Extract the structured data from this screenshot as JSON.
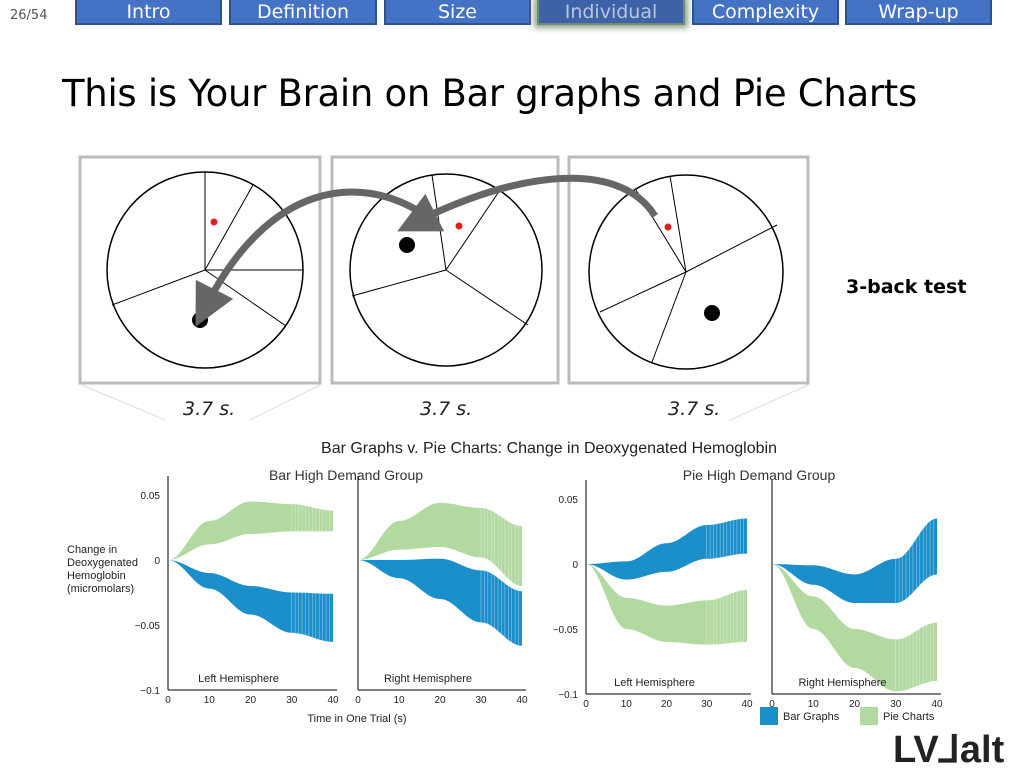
{
  "page_number": "26/54",
  "nav": {
    "tabs": [
      {
        "label": "Intro",
        "active": false
      },
      {
        "label": "Definition",
        "active": false
      },
      {
        "label": "Size",
        "active": false
      },
      {
        "label": "Individual",
        "active": true
      },
      {
        "label": "Complexity",
        "active": false
      },
      {
        "label": "Wrap-up",
        "active": false
      }
    ]
  },
  "title": "This is Your Brain on Bar graphs and Pie Charts",
  "nback": {
    "label": "3-back test",
    "durations": [
      "3.7 s.",
      "3.7 s.",
      "3.7 s."
    ]
  },
  "colors": {
    "nav_bg": "#4472c4",
    "bar_graphs": "#1a8fc9",
    "pie_charts": "#b2d9a0",
    "arrow": "#666666"
  },
  "chart_data": {
    "type": "area",
    "title": "Bar Graphs v. Pie Charts: Change in Deoxygenated Hemoglobin",
    "ylabel": "Change in Deoxygenated Hemoglobin (micromolars)",
    "xlabel": "Time in One Trial (s)",
    "x_ticks": [
      0,
      10,
      20,
      30,
      40
    ],
    "legend": {
      "placement": "bottom-right",
      "entries": [
        "Bar Graphs",
        "Pie Charts"
      ]
    },
    "groups": [
      {
        "title": "Bar High Demand Group",
        "y_ticks": [
          "0.05",
          "0",
          "−0.05",
          "−0.1"
        ],
        "ylim": [
          -0.1,
          0.06
        ],
        "panels": [
          {
            "label": "Left Hemisphere",
            "x": [
              0,
              10,
              20,
              30,
              40
            ],
            "series": [
              {
                "name": "Bar Graphs",
                "lower": [
                  0,
                  -0.022,
                  -0.042,
                  -0.056,
                  -0.063
                ],
                "upper": [
                  0,
                  -0.01,
                  -0.02,
                  -0.025,
                  -0.026
                ]
              },
              {
                "name": "Pie Charts",
                "lower": [
                  0,
                  0.012,
                  0.02,
                  0.022,
                  0.022
                ],
                "upper": [
                  0,
                  0.03,
                  0.045,
                  0.043,
                  0.038
                ]
              }
            ]
          },
          {
            "label": "Right Hemisphere",
            "x": [
              0,
              10,
              20,
              30,
              40
            ],
            "series": [
              {
                "name": "Bar Graphs",
                "lower": [
                  0,
                  -0.014,
                  -0.03,
                  -0.048,
                  -0.066
                ],
                "upper": [
                  0,
                  0.0,
                  0.001,
                  -0.008,
                  -0.024
                ]
              },
              {
                "name": "Pie Charts",
                "lower": [
                  0,
                  0.008,
                  0.01,
                  0.002,
                  -0.02
                ],
                "upper": [
                  0,
                  0.03,
                  0.044,
                  0.04,
                  0.026
                ]
              }
            ]
          }
        ]
      },
      {
        "title": "Pie High Demand Group",
        "y_ticks": [
          "0.05",
          "0",
          "−0.05",
          "−0.1"
        ],
        "ylim": [
          -0.1,
          0.06
        ],
        "panels": [
          {
            "label": "Left Hemisphere",
            "x": [
              0,
              10,
              20,
              30,
              40
            ],
            "series": [
              {
                "name": "Bar Graphs",
                "lower": [
                  0,
                  -0.012,
                  -0.006,
                  0.004,
                  0.008
                ],
                "upper": [
                  0,
                  0.002,
                  0.016,
                  0.03,
                  0.035
                ]
              },
              {
                "name": "Pie Charts",
                "lower": [
                  0,
                  -0.05,
                  -0.06,
                  -0.062,
                  -0.06
                ],
                "upper": [
                  0,
                  -0.026,
                  -0.032,
                  -0.028,
                  -0.02
                ]
              }
            ]
          },
          {
            "label": "Right Hemisphere",
            "x": [
              0,
              10,
              20,
              30,
              40
            ],
            "series": [
              {
                "name": "Bar Graphs",
                "lower": [
                  0,
                  -0.016,
                  -0.03,
                  -0.03,
                  -0.008
                ],
                "upper": [
                  0,
                  -0.001,
                  -0.008,
                  0.004,
                  0.035
                ]
              },
              {
                "name": "Pie Charts",
                "lower": [
                  0,
                  -0.05,
                  -0.08,
                  -0.098,
                  -0.09
                ],
                "upper": [
                  0,
                  -0.025,
                  -0.05,
                  -0.058,
                  -0.045
                ]
              }
            ]
          }
        ]
      }
    ]
  }
}
